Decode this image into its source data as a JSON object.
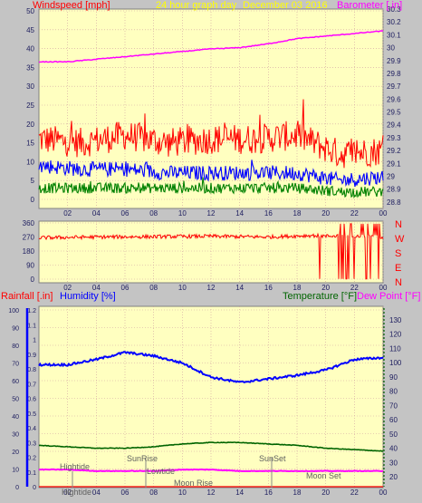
{
  "header": {
    "left_label": "Windspeed [mph]",
    "center_label": "24 hour graph day",
    "date_label": "December 03 2016",
    "right_label": "Barometer [.in]"
  },
  "lower_header": {
    "rain_label": "Rainfall [.in]",
    "humidity_label": "Humidity [%]",
    "temp_label": "Temperature [°F]",
    "dew_label": "Dew Point [°F]"
  },
  "colors": {
    "background": "#c4c4c4",
    "plot_bg": "#ffffc0",
    "wind_gust": "#ff0000",
    "wind_avg": "#0000ff",
    "wind_low": "#008000",
    "barometer": "#ff00ff",
    "direction": "#ff0000",
    "humidity": "#0000ff",
    "temperature": "#006400",
    "dewpoint": "#ff00ff"
  },
  "chart_data": [
    {
      "type": "line",
      "x_ticks": [
        "02",
        "04",
        "06",
        "08",
        "10",
        "12",
        "14",
        "16",
        "18",
        "20",
        "22",
        "00"
      ],
      "left_axis": {
        "ticks": [
          "0",
          "5",
          "10",
          "15",
          "20",
          "25",
          "30",
          "35",
          "40",
          "45",
          "50"
        ],
        "ylim": [
          0,
          50
        ]
      },
      "right_axis": {
        "ticks": [
          "28.8",
          "28.9",
          "29",
          "29.1",
          "29.2",
          "29.3",
          "29.4",
          "29.5",
          "29.6",
          "29.7",
          "29.8",
          "29.9",
          "30",
          "30.1",
          "30.2",
          "30.3"
        ],
        "ylim": [
          28.75,
          30.3
        ]
      },
      "series": [
        {
          "name": "Windspeed [mph]",
          "role": "gust",
          "x": [
            0,
            3,
            6,
            9,
            12,
            15,
            18,
            21,
            24
          ],
          "y": [
            16,
            15,
            17,
            15,
            16,
            16,
            17,
            12,
            13
          ]
        },
        {
          "name": "Windspeed [mph]",
          "role": "average",
          "x": [
            0,
            3,
            6,
            9,
            12,
            15,
            18,
            21,
            24
          ],
          "y": [
            9,
            8,
            8,
            7,
            7,
            7,
            7,
            5,
            6
          ]
        },
        {
          "name": "Windspeed [mph]",
          "role": "low",
          "x": [
            0,
            3,
            6,
            9,
            12,
            15,
            18,
            21,
            24
          ],
          "y": [
            3,
            3,
            3,
            3,
            3,
            3,
            3,
            2,
            2
          ]
        },
        {
          "name": "Barometer [.in]",
          "x": [
            0,
            2,
            4,
            6,
            8,
            10,
            12,
            14,
            16,
            18,
            20,
            22,
            24
          ],
          "y": [
            29.89,
            29.89,
            29.91,
            29.93,
            29.95,
            29.97,
            29.99,
            30.0,
            30.03,
            30.07,
            30.09,
            30.11,
            30.13
          ]
        }
      ]
    },
    {
      "type": "line",
      "x_ticks": [
        "02",
        "04",
        "06",
        "08",
        "10",
        "12",
        "14",
        "16",
        "18",
        "20",
        "22",
        "00"
      ],
      "left_axis": {
        "ticks": [
          "0",
          "90",
          "180",
          "270",
          "360"
        ],
        "ylim": [
          0,
          360
        ]
      },
      "right_axis": {
        "ticks": [
          "N",
          "W",
          "S",
          "E",
          "N"
        ]
      },
      "series": [
        {
          "name": "Wind direction",
          "x": [
            0,
            4,
            8,
            12,
            16,
            19,
            20,
            21,
            22,
            23,
            24
          ],
          "y": [
            265,
            270,
            272,
            275,
            270,
            280,
            275,
            280,
            270,
            275,
            270
          ]
        }
      ]
    },
    {
      "type": "line",
      "x_ticks": [
        "02",
        "04",
        "06",
        "08",
        "10",
        "12",
        "14",
        "16",
        "18",
        "20",
        "22",
        "00"
      ],
      "rain_axis": {
        "ticks": [
          "0",
          "0.1",
          "0.2",
          "0.3",
          "0.4",
          "0.5",
          "0.6",
          "0.7",
          "0.8",
          "0.9",
          "1",
          "1.1",
          "1.2"
        ],
        "ylim": [
          0,
          1.2
        ]
      },
      "humidity_axis": {
        "ticks": [
          "0",
          "10",
          "20",
          "30",
          "40",
          "50",
          "60",
          "70",
          "80",
          "90",
          "100"
        ],
        "ylim": [
          0,
          100
        ]
      },
      "temp_axis": {
        "ticks": [
          "20",
          "30",
          "40",
          "50",
          "60",
          "70",
          "80",
          "90",
          "100",
          "110",
          "120",
          "130"
        ],
        "ylim": [
          13,
          137
        ]
      },
      "series": [
        {
          "name": "Humidity [%]",
          "x": [
            0,
            2,
            4,
            6,
            8,
            10,
            12,
            14,
            16,
            18,
            20,
            22,
            24
          ],
          "y": [
            69,
            69,
            72,
            76,
            74,
            70,
            62,
            59,
            61,
            63,
            66,
            72,
            73
          ]
        },
        {
          "name": "Temperature [°F]",
          "x": [
            0,
            2,
            4,
            6,
            8,
            10,
            12,
            14,
            16,
            18,
            20,
            22,
            24
          ],
          "y": [
            42,
            41,
            40,
            40,
            41,
            43,
            44,
            44,
            43,
            42,
            40,
            39,
            38
          ]
        },
        {
          "name": "Dew Point [°F]",
          "x": [
            0,
            2,
            4,
            6,
            8,
            10,
            12,
            14,
            16,
            18,
            20,
            22,
            24
          ],
          "y": [
            25,
            25,
            24,
            24,
            24,
            25,
            25,
            24,
            24,
            24,
            24,
            24,
            24
          ]
        },
        {
          "name": "Rainfall [.in]",
          "x": [
            0,
            24
          ],
          "y": [
            0,
            0
          ]
        }
      ],
      "annotations": [
        "Hightide",
        "Hightide",
        "SunRise",
        "Lowtide",
        "Moon Rise",
        "SunSet",
        "Moon Set"
      ]
    }
  ]
}
